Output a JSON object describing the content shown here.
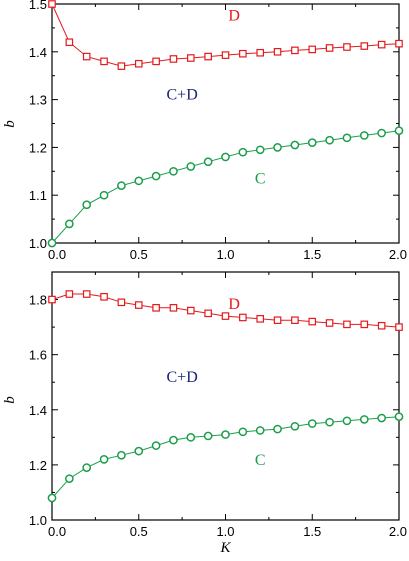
{
  "chart_data": [
    {
      "type": "line",
      "xlabel": "",
      "ylabel": "b",
      "xlim": [
        0.0,
        2.0
      ],
      "ylim": [
        1.0,
        1.5
      ],
      "x_ticks": [
        "0.0",
        "0.5",
        "1.0",
        "1.5",
        "2.0"
      ],
      "y_ticks": [
        "1.0",
        "1.1",
        "1.2",
        "1.3",
        "1.4",
        "1.5"
      ],
      "grid": false,
      "annotations": [
        {
          "text": "D",
          "x": 1.05,
          "y": 1.465,
          "color": "#e41a1c"
        },
        {
          "text": "C+D",
          "x": 0.75,
          "y": 1.3,
          "color": "#1a237e"
        },
        {
          "text": "C",
          "x": 1.2,
          "y": 1.125,
          "color": "#1b9e4b"
        }
      ],
      "series": [
        {
          "name": "D",
          "marker": "square",
          "color": "#e41a1c",
          "x": [
            0.0,
            0.1,
            0.2,
            0.3,
            0.4,
            0.5,
            0.6,
            0.7,
            0.8,
            0.9,
            1.0,
            1.1,
            1.2,
            1.3,
            1.4,
            1.5,
            1.6,
            1.7,
            1.8,
            1.9,
            2.0
          ],
          "y": [
            1.5,
            1.42,
            1.39,
            1.38,
            1.37,
            1.375,
            1.38,
            1.385,
            1.387,
            1.39,
            1.393,
            1.396,
            1.398,
            1.4,
            1.403,
            1.405,
            1.408,
            1.41,
            1.412,
            1.415,
            1.417
          ]
        },
        {
          "name": "C",
          "marker": "circle",
          "color": "#1b9e4b",
          "x": [
            0.0,
            0.1,
            0.2,
            0.3,
            0.4,
            0.5,
            0.6,
            0.7,
            0.8,
            0.9,
            1.0,
            1.1,
            1.2,
            1.3,
            1.4,
            1.5,
            1.6,
            1.7,
            1.8,
            1.9,
            2.0
          ],
          "y": [
            1.0,
            1.04,
            1.08,
            1.1,
            1.12,
            1.13,
            1.14,
            1.15,
            1.16,
            1.17,
            1.18,
            1.19,
            1.195,
            1.2,
            1.205,
            1.21,
            1.215,
            1.22,
            1.225,
            1.23,
            1.235
          ]
        }
      ]
    },
    {
      "type": "line",
      "xlabel": "K",
      "ylabel": "b",
      "xlim": [
        0.0,
        2.0
      ],
      "ylim": [
        1.0,
        1.9
      ],
      "x_ticks": [
        "0.0",
        "0.5",
        "1.0",
        "1.5",
        "2.0"
      ],
      "y_ticks": [
        "1.0",
        "1.2",
        "1.4",
        "1.6",
        "1.8"
      ],
      "grid": false,
      "annotations": [
        {
          "text": "D",
          "x": 1.05,
          "y": 1.765,
          "color": "#e41a1c"
        },
        {
          "text": "C+D",
          "x": 0.75,
          "y": 1.5,
          "color": "#1a237e"
        },
        {
          "text": "C",
          "x": 1.2,
          "y": 1.2,
          "color": "#1b9e4b"
        }
      ],
      "series": [
        {
          "name": "D",
          "marker": "square",
          "color": "#e41a1c",
          "x": [
            0.0,
            0.1,
            0.2,
            0.3,
            0.4,
            0.5,
            0.6,
            0.7,
            0.8,
            0.9,
            1.0,
            1.1,
            1.2,
            1.3,
            1.4,
            1.5,
            1.6,
            1.7,
            1.8,
            1.9,
            2.0
          ],
          "y": [
            1.8,
            1.82,
            1.82,
            1.81,
            1.79,
            1.78,
            1.77,
            1.77,
            1.76,
            1.75,
            1.74,
            1.735,
            1.73,
            1.725,
            1.725,
            1.72,
            1.715,
            1.71,
            1.71,
            1.705,
            1.7
          ]
        },
        {
          "name": "C",
          "marker": "circle",
          "color": "#1b9e4b",
          "x": [
            0.0,
            0.1,
            0.2,
            0.3,
            0.4,
            0.5,
            0.6,
            0.7,
            0.8,
            0.9,
            1.0,
            1.1,
            1.2,
            1.3,
            1.4,
            1.5,
            1.6,
            1.7,
            1.8,
            1.9,
            2.0
          ],
          "y": [
            1.08,
            1.15,
            1.19,
            1.22,
            1.235,
            1.25,
            1.27,
            1.29,
            1.3,
            1.305,
            1.31,
            1.32,
            1.325,
            1.33,
            1.34,
            1.35,
            1.355,
            1.36,
            1.365,
            1.37,
            1.375
          ]
        }
      ]
    }
  ]
}
